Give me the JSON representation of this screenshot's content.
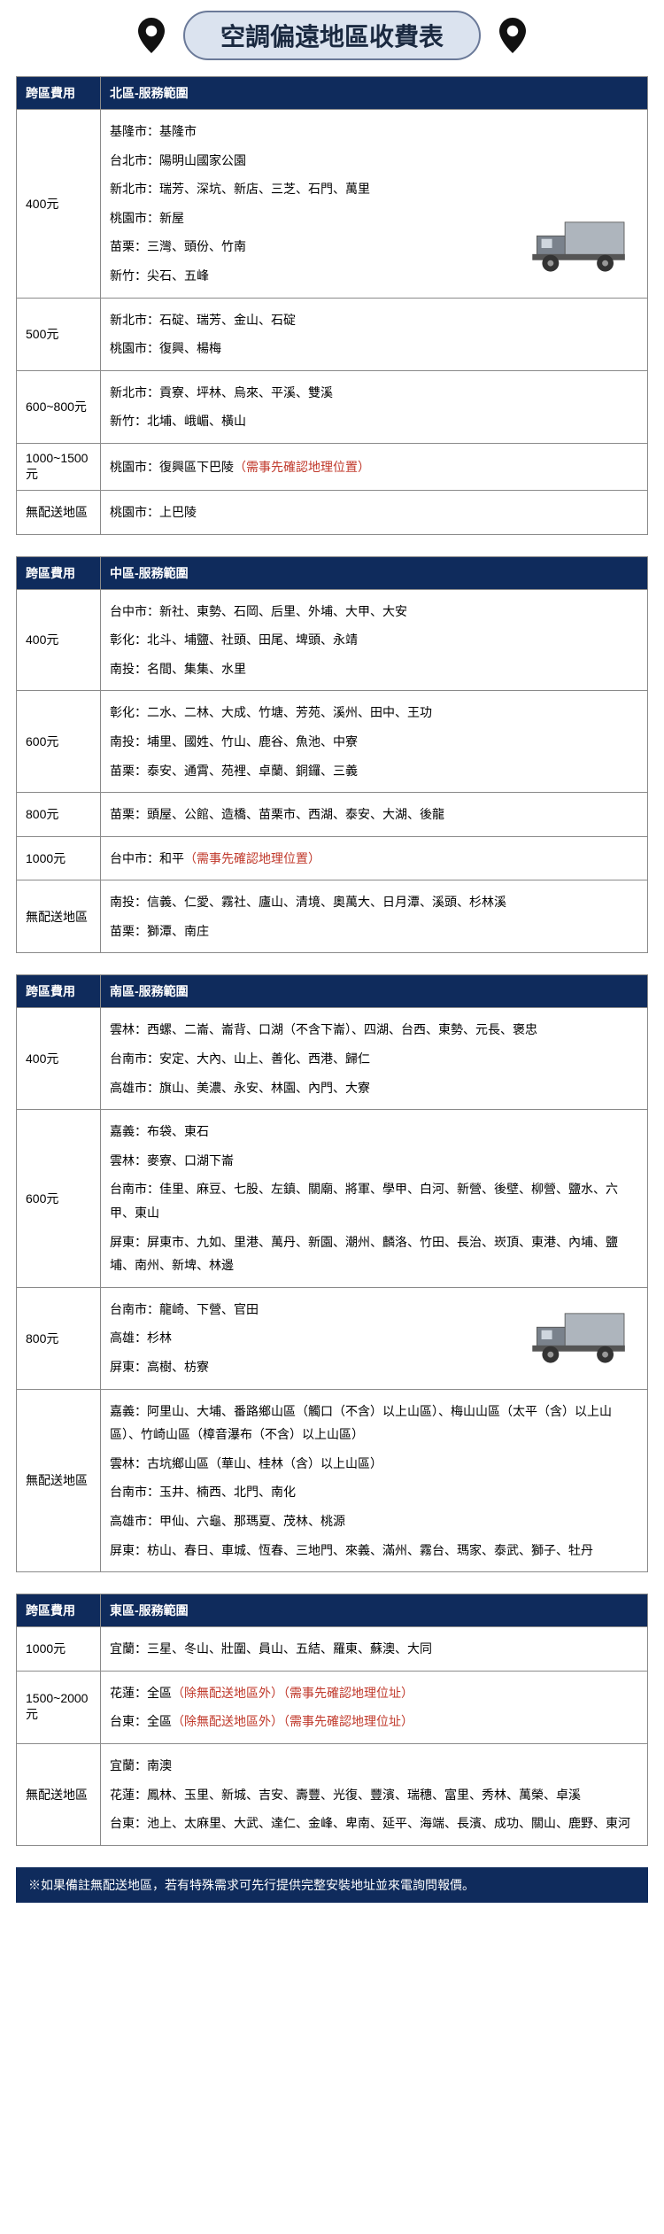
{
  "title": "空調偏遠地區收費表",
  "columns": {
    "fee": "跨區費用"
  },
  "regions": [
    {
      "name": "北區-服務範圍",
      "rows": [
        {
          "fee": "400元",
          "truck": true,
          "lines": [
            "基隆市：基隆市",
            "台北市：陽明山國家公園",
            "新北市：瑞芳、深坑、新店、三芝、石門、萬里",
            "桃園市：新屋",
            "苗栗：三灣、頭份、竹南",
            "新竹：尖石、五峰"
          ]
        },
        {
          "fee": "500元",
          "lines": [
            "新北市：石碇、瑞芳、金山、石碇",
            "桃園市：復興、楊梅"
          ]
        },
        {
          "fee": "600~800元",
          "lines": [
            "新北市：貢寮、坪林、烏來、平溪、雙溪",
            "新竹：北埔、峨嵋、橫山"
          ]
        },
        {
          "fee": "1000~1500元",
          "lines": [
            {
              "text": "桃園市：復興區下巴陵",
              "note": "（需事先確認地理位置）"
            }
          ]
        },
        {
          "fee": "無配送地區",
          "lines": [
            "桃園市：上巴陵"
          ]
        }
      ]
    },
    {
      "name": "中區-服務範圍",
      "rows": [
        {
          "fee": "400元",
          "lines": [
            "台中市：新社、東勢、石岡、后里、外埔、大甲、大安",
            "彰化：北斗、埔鹽、社頭、田尾、埤頭、永靖",
            "南投：名間、集集、水里"
          ]
        },
        {
          "fee": "600元",
          "lines": [
            "彰化：二水、二林、大成、竹塘、芳苑、溪州、田中、王功",
            "南投：埔里、國姓、竹山、鹿谷、魚池、中寮",
            "苗栗：泰安、通霄、苑裡、卓蘭、銅鑼、三義"
          ]
        },
        {
          "fee": "800元",
          "lines": [
            "苗栗：頭屋、公館、造橋、苗栗市、西湖、泰安、大湖、後龍"
          ]
        },
        {
          "fee": "1000元",
          "lines": [
            {
              "text": "台中市：和平",
              "note": "（需事先確認地理位置）"
            }
          ]
        },
        {
          "fee": "無配送地區",
          "lines": [
            "南投：信義、仁愛、霧社、廬山、清境、奧萬大、日月潭、溪頭、杉林溪",
            "苗栗：獅潭、南庄"
          ]
        }
      ]
    },
    {
      "name": "南區-服務範圍",
      "rows": [
        {
          "fee": "400元",
          "lines": [
            "雲林：西螺、二崙、崙背、口湖（不含下崙）、四湖、台西、東勢、元長、褒忠",
            "台南市：安定、大內、山上、善化、西港、歸仁",
            "高雄市：旗山、美濃、永安、林園、內門、大寮"
          ]
        },
        {
          "fee": "600元",
          "lines": [
            "嘉義：布袋、東石",
            "雲林：麥寮、口湖下崙",
            "台南市：佳里、麻豆、七股、左鎮、關廟、將軍、學甲、白河、新營、後壁、柳營、鹽水、六甲、東山",
            "屏東：屏東市、九如、里港、萬丹、新園、潮州、麟洛、竹田、長治、崁頂、東港、內埔、鹽埔、南州、新埤、林邊"
          ]
        },
        {
          "fee": "800元",
          "truck": true,
          "lines": [
            "台南市：龍崎、下營、官田",
            "高雄：杉林",
            "屏東：高樹、枋寮"
          ]
        },
        {
          "fee": "無配送地區",
          "lines": [
            "嘉義：阿里山、大埔、番路鄉山區（觸口（不含）以上山區）、梅山山區（太平（含）以上山區）、竹崎山區（樟音瀑布（不含）以上山區）",
            "雲林：古坑鄉山區（華山、桂林（含）以上山區）",
            "台南市：玉井、楠西、北門、南化",
            "高雄市：甲仙、六龜、那瑪夏、茂林、桃源",
            "屏東：枋山、春日、車城、恆春、三地門、來義、滿州、霧台、瑪家、泰武、獅子、牡丹"
          ]
        }
      ]
    },
    {
      "name": "東區-服務範圍",
      "rows": [
        {
          "fee": "1000元",
          "lines": [
            "宜蘭：三星、冬山、壯圍、員山、五結、羅東、蘇澳、大同"
          ]
        },
        {
          "fee": "1500~2000元",
          "lines": [
            {
              "text": "花蓮：全區",
              "note": "（除無配送地區外）（需事先確認地理位址）"
            },
            {
              "text": "台東：全區",
              "note": "（除無配送地區外）（需事先確認地理位址）"
            }
          ]
        },
        {
          "fee": "無配送地區",
          "lines": [
            "宜蘭：南澳",
            "花蓮：鳳林、玉里、新城、吉安、壽豐、光復、豐濱、瑞穗、富里、秀林、萬榮、卓溪",
            "台東：池上、太麻里、大武、達仁、金峰、卑南、延平、海端、長濱、成功、關山、鹿野、東河"
          ]
        }
      ]
    }
  ],
  "footnote": "※如果備註無配送地區，若有特殊需求可先行提供完整安裝地址並來電詢問報價。"
}
